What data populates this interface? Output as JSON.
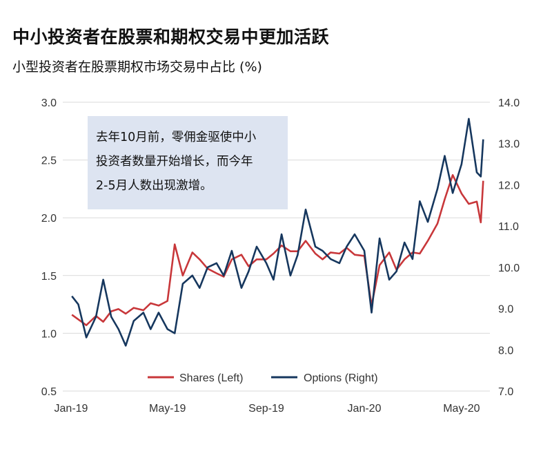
{
  "title": "中小投资者在股票和期权交易中更加活跃",
  "subtitle": "小型投资者在股票期权市场交易中占比 (%)",
  "annotation": "去年10月前，零佣金驱使中小\n投资者数量开始增长，而今年\n2-5月人数出现激增。",
  "chart_data": {
    "type": "line",
    "x_ticks": [
      "Jan-19",
      "May-19",
      "Sep-19",
      "Jan-20",
      "May-20"
    ],
    "left_axis": {
      "ticks": [
        "0.5",
        "1.0",
        "1.5",
        "2.0",
        "2.5",
        "3.0"
      ],
      "range": [
        0.5,
        3.0
      ]
    },
    "right_axis": {
      "ticks": [
        "7.0",
        "8.0",
        "9.0",
        "10.0",
        "11.0",
        "12.0",
        "13.0",
        "14.0"
      ],
      "range": [
        7.0,
        14.0
      ]
    },
    "grid": true,
    "legend_position": "bottom",
    "series": [
      {
        "name": "Shares (Left)",
        "axis": "left",
        "color": "#c8373a",
        "x": [
          "2019-01-02",
          "2019-01-10",
          "2019-01-20",
          "2019-02-01",
          "2019-02-10",
          "2019-02-20",
          "2019-03-01",
          "2019-03-10",
          "2019-03-20",
          "2019-04-01",
          "2019-04-10",
          "2019-04-20",
          "2019-05-01",
          "2019-05-10",
          "2019-05-20",
          "2019-06-01",
          "2019-06-10",
          "2019-06-20",
          "2019-07-01",
          "2019-07-10",
          "2019-07-20",
          "2019-08-01",
          "2019-08-10",
          "2019-08-20",
          "2019-09-01",
          "2019-09-10",
          "2019-09-20",
          "2019-10-01",
          "2019-10-10",
          "2019-10-20",
          "2019-11-01",
          "2019-11-10",
          "2019-11-20",
          "2019-12-01",
          "2019-12-10",
          "2019-12-20",
          "2020-01-01",
          "2020-01-10",
          "2020-01-20",
          "2020-02-01",
          "2020-02-10",
          "2020-02-20",
          "2020-03-01",
          "2020-03-10",
          "2020-03-20",
          "2020-04-01",
          "2020-04-10",
          "2020-04-20",
          "2020-05-01",
          "2020-05-10",
          "2020-05-20",
          "2020-05-25",
          "2020-05-28"
        ],
        "values": [
          1.16,
          1.12,
          1.07,
          1.15,
          1.1,
          1.19,
          1.21,
          1.17,
          1.22,
          1.2,
          1.26,
          1.24,
          1.28,
          1.77,
          1.5,
          1.7,
          1.64,
          1.56,
          1.52,
          1.49,
          1.64,
          1.68,
          1.58,
          1.64,
          1.64,
          1.69,
          1.76,
          1.71,
          1.71,
          1.8,
          1.69,
          1.64,
          1.7,
          1.69,
          1.74,
          1.68,
          1.67,
          1.24,
          1.59,
          1.7,
          1.55,
          1.64,
          1.7,
          1.69,
          1.8,
          1.95,
          2.16,
          2.37,
          2.21,
          2.12,
          2.14,
          1.96,
          2.32
        ]
      },
      {
        "name": "Options (Right)",
        "axis": "right",
        "color": "#16375e",
        "x": [
          "2019-01-02",
          "2019-01-10",
          "2019-01-20",
          "2019-02-01",
          "2019-02-10",
          "2019-02-20",
          "2019-03-01",
          "2019-03-10",
          "2019-03-20",
          "2019-04-01",
          "2019-04-10",
          "2019-04-20",
          "2019-05-01",
          "2019-05-10",
          "2019-05-20",
          "2019-06-01",
          "2019-06-10",
          "2019-06-20",
          "2019-07-01",
          "2019-07-10",
          "2019-07-20",
          "2019-08-01",
          "2019-08-10",
          "2019-08-20",
          "2019-09-01",
          "2019-09-10",
          "2019-09-20",
          "2019-10-01",
          "2019-10-10",
          "2019-10-20",
          "2019-11-01",
          "2019-11-10",
          "2019-11-20",
          "2019-12-01",
          "2019-12-10",
          "2019-12-20",
          "2020-01-01",
          "2020-01-10",
          "2020-01-20",
          "2020-02-01",
          "2020-02-10",
          "2020-02-20",
          "2020-03-01",
          "2020-03-10",
          "2020-03-20",
          "2020-04-01",
          "2020-04-10",
          "2020-04-20",
          "2020-05-01",
          "2020-05-10",
          "2020-05-20",
          "2020-05-25",
          "2020-05-28"
        ],
        "values": [
          9.3,
          9.1,
          8.3,
          8.8,
          9.7,
          8.8,
          8.5,
          8.1,
          8.7,
          8.9,
          8.5,
          8.9,
          8.5,
          8.4,
          9.6,
          9.8,
          9.5,
          10.0,
          10.1,
          9.8,
          10.4,
          9.5,
          9.9,
          10.5,
          10.1,
          9.7,
          10.8,
          9.8,
          10.3,
          11.4,
          10.5,
          10.4,
          10.2,
          10.1,
          10.5,
          10.8,
          10.4,
          8.9,
          10.7,
          9.7,
          9.9,
          10.6,
          10.2,
          11.6,
          11.1,
          11.9,
          12.7,
          11.8,
          12.5,
          13.6,
          12.3,
          12.2,
          13.1
        ]
      }
    ]
  }
}
